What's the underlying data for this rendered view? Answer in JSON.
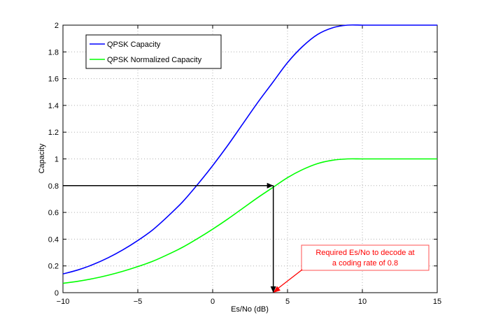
{
  "chart_data": {
    "type": "line",
    "title": "",
    "xlabel": "Es/No (dB)",
    "ylabel": "Capacity",
    "xlim": [
      -10,
      15
    ],
    "ylim": [
      0,
      2
    ],
    "grid": true,
    "legend_position": "top-left",
    "xticks": [
      -10,
      -5,
      0,
      5,
      10,
      15
    ],
    "yticks": [
      0,
      0.2,
      0.4,
      0.6,
      0.8,
      1,
      1.2,
      1.4,
      1.6,
      1.8,
      2
    ],
    "xtick_labels": [
      "−10",
      "−5",
      "0",
      "5",
      "10",
      "15"
    ],
    "ytick_labels": [
      "0",
      "0.2",
      "0.4",
      "0.6",
      "0.8",
      "1",
      "1.2",
      "1.4",
      "1.6",
      "1.8",
      "2"
    ],
    "x": [
      -10,
      -9,
      -8,
      -7,
      -6,
      -5,
      -4,
      -3,
      -2,
      -1,
      0,
      1,
      2,
      3,
      4,
      5,
      6,
      7,
      8,
      9,
      10,
      11,
      12,
      13,
      14,
      15
    ],
    "series": [
      {
        "name": "QPSK Capacity",
        "color": "#0000ff",
        "values": [
          0.14,
          0.17,
          0.21,
          0.26,
          0.32,
          0.39,
          0.47,
          0.57,
          0.68,
          0.81,
          0.95,
          1.1,
          1.26,
          1.42,
          1.57,
          1.72,
          1.84,
          1.93,
          1.98,
          2.0,
          2.0,
          2.0,
          2.0,
          2.0,
          2.0,
          2.0
        ]
      },
      {
        "name": "QPSK Normalized Capacity",
        "color": "#00ff00",
        "values": [
          0.07,
          0.085,
          0.105,
          0.13,
          0.16,
          0.195,
          0.235,
          0.285,
          0.34,
          0.405,
          0.475,
          0.55,
          0.63,
          0.71,
          0.785,
          0.86,
          0.92,
          0.965,
          0.99,
          1.0,
          1.0,
          1.0,
          1.0,
          1.0,
          1.0,
          1.0
        ]
      }
    ],
    "reference_arrows": [
      {
        "from": [
          -10,
          0.8
        ],
        "to": [
          4.05,
          0.8
        ],
        "color": "#000000"
      },
      {
        "from": [
          4.05,
          0.8
        ],
        "to": [
          4.05,
          0
        ],
        "color": "#000000"
      }
    ],
    "annotation": {
      "lines": [
        "Required Es/No to decode at",
        "a coding rate of 0.8"
      ],
      "color": "#ff0000",
      "points_to": [
        4.05,
        0
      ]
    }
  }
}
